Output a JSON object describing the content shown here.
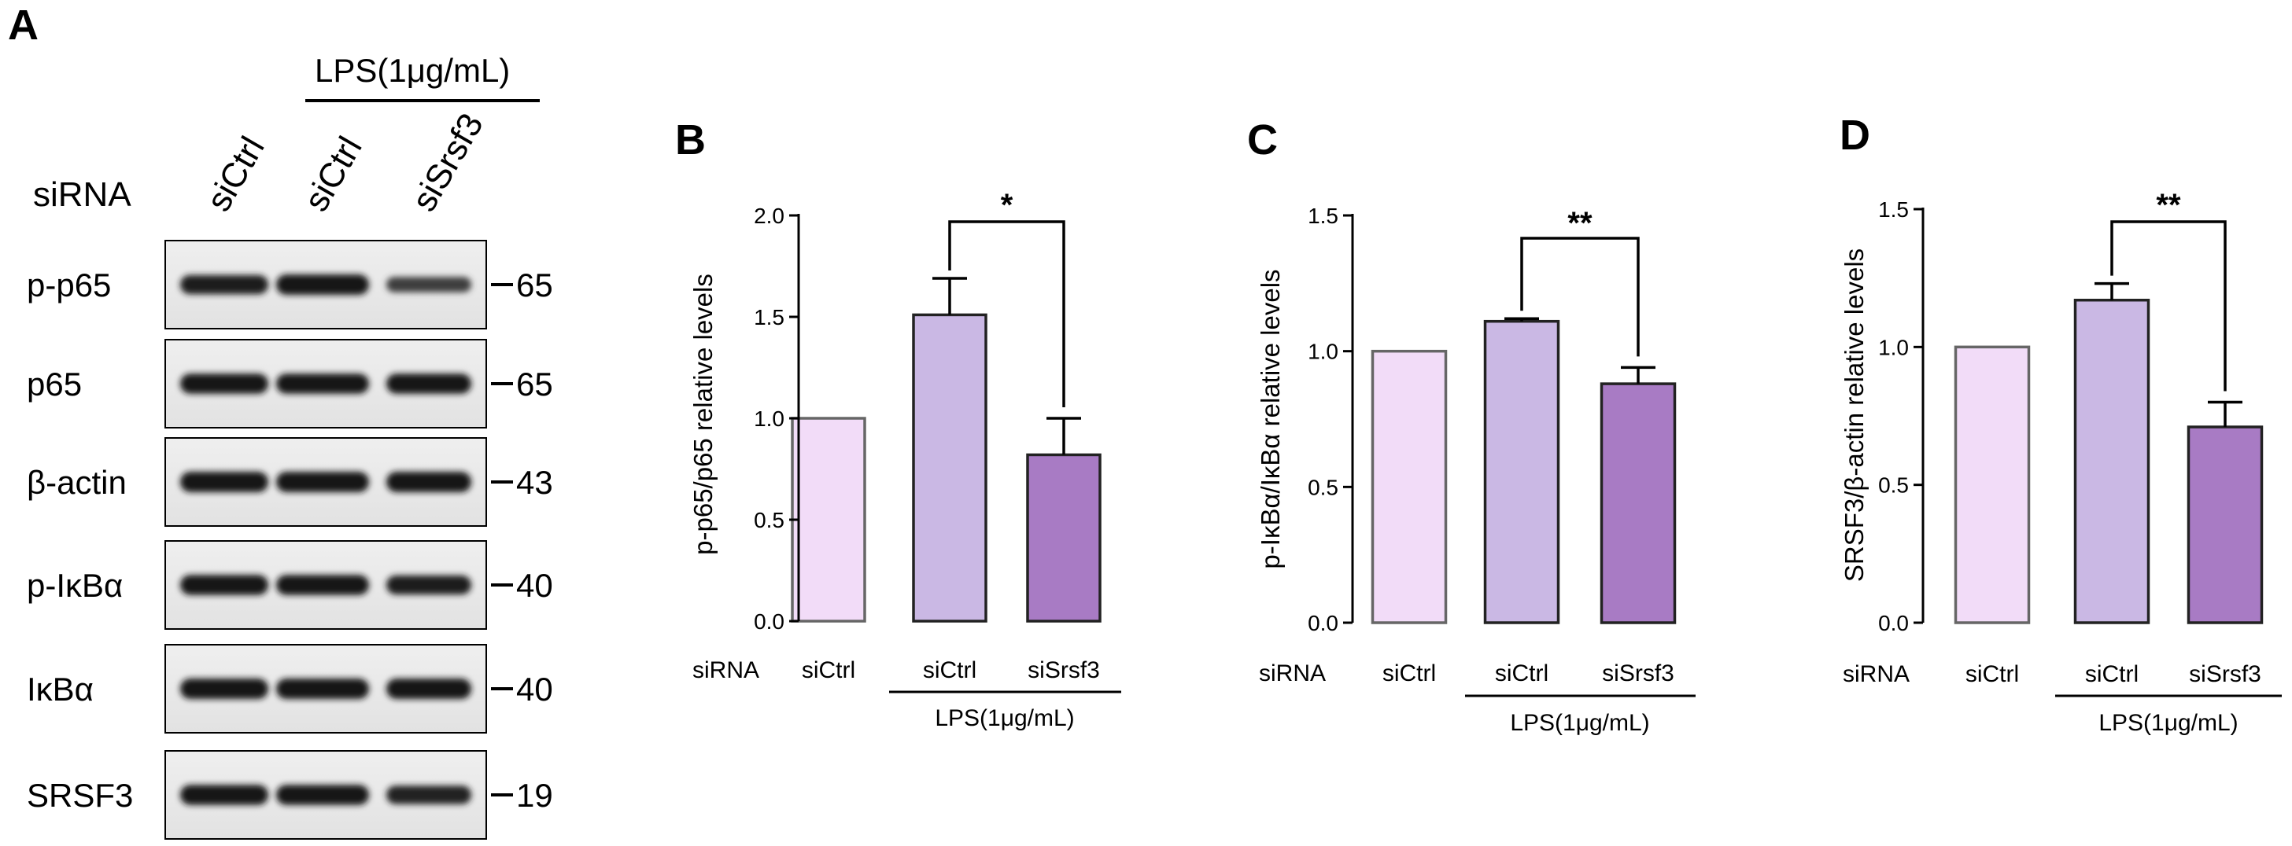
{
  "panel_a": {
    "letter": "A",
    "lps_label": "LPS(1μg/mL)",
    "sirna_label": "siRNA",
    "lanes": [
      "siCtrl",
      "siCtrl",
      "siSrsf3"
    ],
    "blots": [
      {
        "label": "p-p65",
        "mw": "65",
        "intensity": [
          0.85,
          1.0,
          0.45
        ]
      },
      {
        "label": "p65",
        "mw": "65",
        "intensity": [
          0.95,
          0.95,
          0.95
        ]
      },
      {
        "label": "β-actin",
        "mw": "43",
        "intensity": [
          1.0,
          1.0,
          1.0
        ]
      },
      {
        "label": "p-IκBα",
        "mw": "40",
        "intensity": [
          0.95,
          0.95,
          0.85
        ]
      },
      {
        "label": "IκBα",
        "mw": "40",
        "intensity": [
          1.0,
          1.0,
          1.0
        ]
      },
      {
        "label": "SRSF3",
        "mw": "19",
        "intensity": [
          0.95,
          0.95,
          0.8
        ]
      }
    ]
  },
  "chart_data": [
    {
      "panel": "B",
      "type": "bar",
      "categories": [
        "siCtrl",
        "siCtrl",
        "siSrsf3"
      ],
      "values": [
        1.0,
        1.51,
        0.82
      ],
      "errors": [
        0,
        0.18,
        0.18
      ],
      "colors": [
        "#f2dcf8",
        "#cab8e4",
        "#a87bc4"
      ],
      "ylabel": "p-p65/p65 relative levels",
      "ylim": [
        0,
        2.0
      ],
      "yticks": [
        "0.0",
        "0.5",
        "1.0",
        "1.5",
        "2.0"
      ],
      "xlabel_prefix": "siRNA",
      "group_label": "LPS(1μg/mL)",
      "significance": {
        "from": 1,
        "to": 2,
        "label": "*"
      }
    },
    {
      "panel": "C",
      "type": "bar",
      "categories": [
        "siCtrl",
        "siCtrl",
        "siSrsf3"
      ],
      "values": [
        1.0,
        1.11,
        0.88
      ],
      "errors": [
        0,
        0.01,
        0.06
      ],
      "colors": [
        "#f2dcf8",
        "#cab8e4",
        "#a87bc4"
      ],
      "ylabel": "p-IκBα/IκBα relative levels",
      "ylim": [
        0,
        1.5
      ],
      "yticks": [
        "0.0",
        "0.5",
        "1.0",
        "1.5"
      ],
      "xlabel_prefix": "siRNA",
      "group_label": "LPS(1μg/mL)",
      "significance": {
        "from": 1,
        "to": 2,
        "label": "**"
      }
    },
    {
      "panel": "D",
      "type": "bar",
      "categories": [
        "siCtrl",
        "siCtrl",
        "siSrsf3"
      ],
      "values": [
        1.0,
        1.17,
        0.71
      ],
      "errors": [
        0,
        0.06,
        0.09
      ],
      "colors": [
        "#f2dcf8",
        "#cab8e4",
        "#a87bc4"
      ],
      "ylabel": "SRSF3/β-actin  relative levels",
      "ylim": [
        0,
        1.5
      ],
      "yticks": [
        "0.0",
        "0.5",
        "1.0",
        "1.5"
      ],
      "xlabel_prefix": "siRNA",
      "group_label": "LPS(1μg/mL)",
      "significance": {
        "from": 1,
        "to": 2,
        "label": "**"
      }
    }
  ]
}
